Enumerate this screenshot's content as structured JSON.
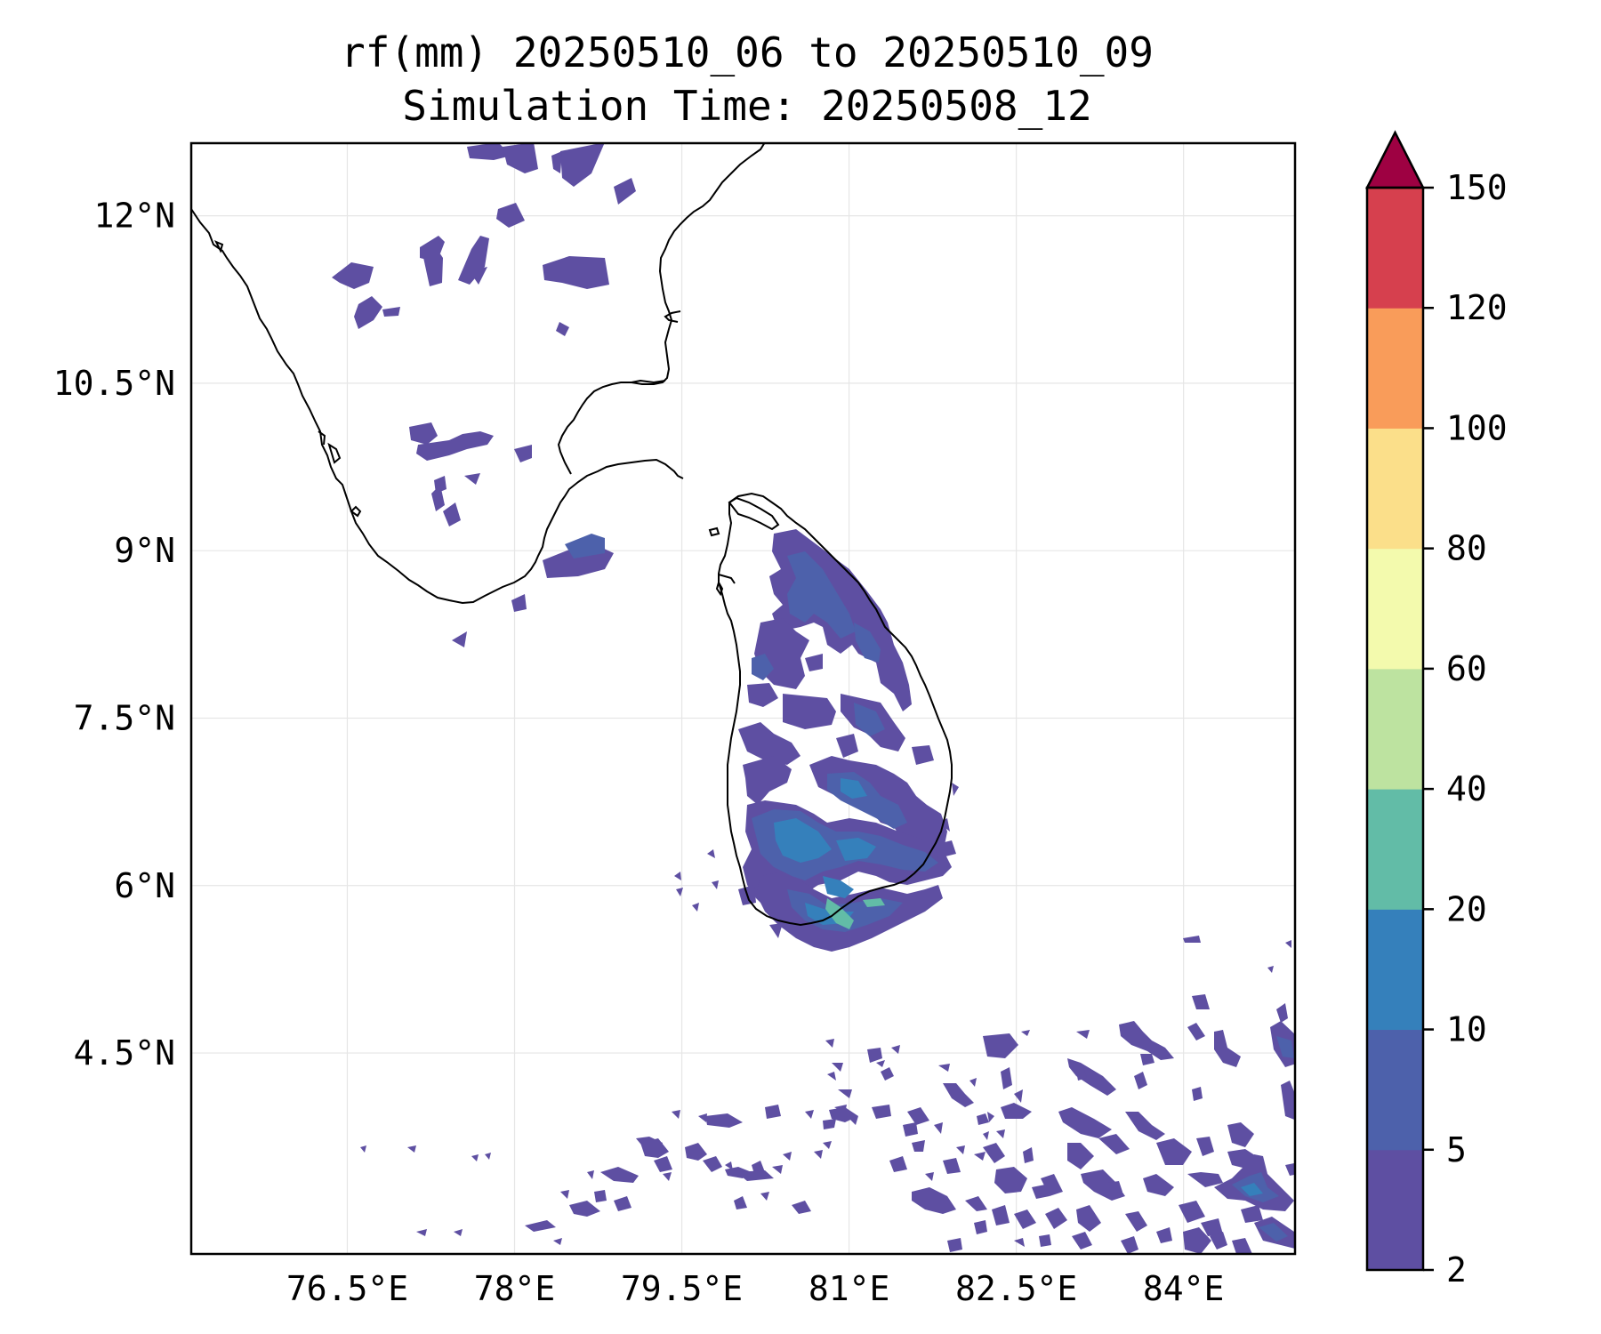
{
  "title": "rf(mm) 20250510_06 to 20250510_09",
  "subtitle": "Simulation Time: 20250508_12",
  "map": {
    "lon_range": [
      75.1,
      85.0
    ],
    "lat_range": [
      2.7,
      12.65
    ],
    "lon_ticks": [
      {
        "value": 76.5,
        "label": "76.5°E"
      },
      {
        "value": 78.0,
        "label": "78°E"
      },
      {
        "value": 79.5,
        "label": "79.5°E"
      },
      {
        "value": 81.0,
        "label": "81°E"
      },
      {
        "value": 82.5,
        "label": "82.5°E"
      },
      {
        "value": 84.0,
        "label": "84°E"
      }
    ],
    "lat_ticks": [
      {
        "value": 12.0,
        "label": "12°N"
      },
      {
        "value": 10.5,
        "label": "10.5°N"
      },
      {
        "value": 9.0,
        "label": "9°N"
      },
      {
        "value": 7.5,
        "label": "7.5°N"
      },
      {
        "value": 6.0,
        "label": "6°N"
      },
      {
        "value": 4.5,
        "label": "4.5°N"
      }
    ],
    "grid": true,
    "coastline_color": "#000000"
  },
  "colorbar": {
    "levels": [
      "2",
      "5",
      "10",
      "20",
      "40",
      "60",
      "80",
      "100",
      "120",
      "150"
    ],
    "colors": [
      "#5e4fa2",
      "#4d61ab",
      "#3580bb",
      "#62bca7",
      "#bde3a0",
      "#f3faad",
      "#fbdf8a",
      "#f99c5a",
      "#d6404e"
    ],
    "extend_color": "#9e0142",
    "extend": "max"
  },
  "rain_colors": {
    "c2": "#5e4fa2",
    "c5": "#4d61ab",
    "c10": "#3580bb",
    "c20": "#62bca7"
  }
}
